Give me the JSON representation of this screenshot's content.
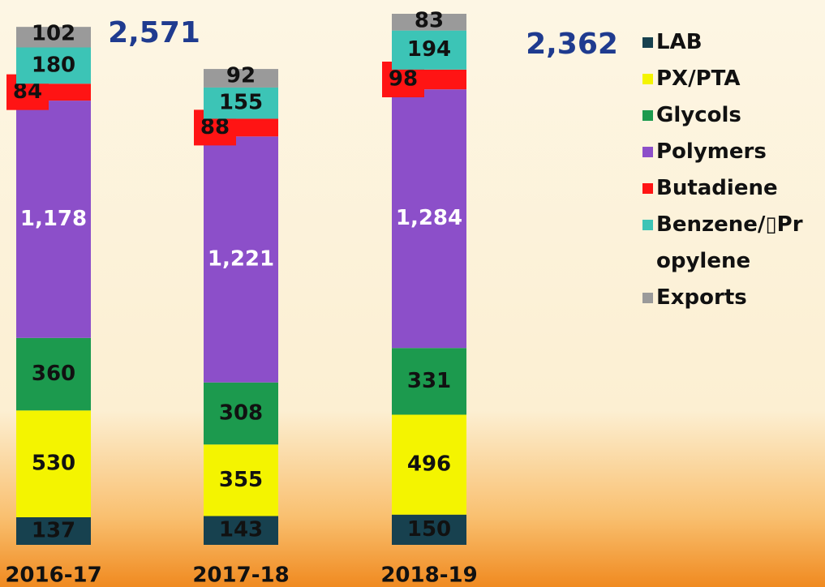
{
  "chart_data": {
    "type": "stacked_bar",
    "categories": [
      "2016-17",
      "2017-18",
      "2018-19"
    ],
    "series": [
      {
        "name": "LAB",
        "color": "#17414f",
        "values": [
          137,
          143,
          150
        ]
      },
      {
        "name": "PX/PTA",
        "color": "#f4f400",
        "values": [
          530,
          355,
          496
        ]
      },
      {
        "name": "Glycols",
        "color": "#1c9a4e",
        "values": [
          360,
          308,
          331
        ]
      },
      {
        "name": "Polymers",
        "color": "#8c4fc9",
        "values": [
          1178,
          1221,
          1284
        ],
        "value_labels": [
          "1,178",
          "1,221",
          "1,284"
        ]
      },
      {
        "name": "Butadiene",
        "color": "#ff1414",
        "values": [
          84,
          88,
          98
        ]
      },
      {
        "name": "Benzene/▯Propylene",
        "color": "#3cc4b6",
        "values": [
          180,
          155,
          194
        ]
      },
      {
        "name": "Exports",
        "color": "#9a9a9a",
        "values": [
          102,
          92,
          83
        ]
      }
    ],
    "annotations": [
      "2,571",
      "2,362"
    ]
  }
}
